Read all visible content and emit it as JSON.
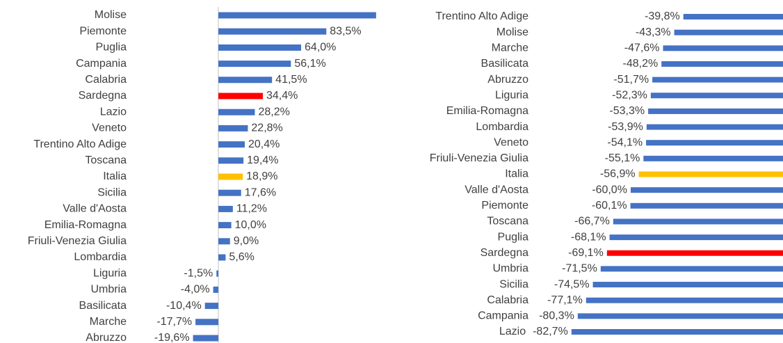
{
  "chart_data": [
    {
      "type": "barh",
      "categories": [
        "Molise",
        "Piemonte",
        "Puglia",
        "Campania",
        "Calabria",
        "Sardegna",
        "Lazio",
        "Veneto",
        "Trentino Alto Adige",
        "Toscana",
        "Italia",
        "Sicilia",
        "Valle d'Aosta",
        "Emilia-Romagna",
        "Friuli-Venezia Giulia",
        "Lombardia",
        "Liguria",
        "Umbria",
        "Basilicata",
        "Marche",
        "Abruzzo"
      ],
      "values": [
        122.0,
        83.5,
        64.0,
        56.1,
        41.5,
        34.4,
        28.2,
        22.8,
        20.4,
        19.4,
        18.9,
        17.6,
        11.2,
        10.0,
        9.0,
        5.6,
        -1.5,
        -4.0,
        -10.4,
        -17.7,
        -19.6
      ],
      "value_labels": [
        null,
        "83,5%",
        "64,0%",
        "56,1%",
        "41,5%",
        "34,4%",
        "28,2%",
        "22,8%",
        "20,4%",
        "19,4%",
        "18,9%",
        "17,6%",
        "11,2%",
        "10,0%",
        "9,0%",
        "5,6%",
        "-1,5%",
        "-4,0%",
        "-10,4%",
        "-17,7%",
        "-19,6%"
      ],
      "colors": [
        "#4472c4",
        "#4472c4",
        "#4472c4",
        "#4472c4",
        "#4472c4",
        "#ff0000",
        "#4472c4",
        "#4472c4",
        "#4472c4",
        "#4472c4",
        "#ffc000",
        "#4472c4",
        "#4472c4",
        "#4472c4",
        "#4472c4",
        "#4472c4",
        "#4472c4",
        "#4472c4",
        "#4472c4",
        "#4472c4",
        "#4472c4"
      ],
      "xlim": [
        -66.7,
        129.6
      ]
    },
    {
      "type": "barh",
      "categories": [
        "Trentino Alto Adige",
        "Molise",
        "Marche",
        "Basilicata",
        "Abruzzo",
        "Liguria",
        "Emilia-Romagna",
        "Lombardia",
        "Veneto",
        "Friuli-Venezia Giulia",
        "Italia",
        "Valle d'Aosta",
        "Piemonte",
        "Toscana",
        "Puglia",
        "Sardegna",
        "Umbria",
        "Sicilia",
        "Calabria",
        "Campania",
        "Lazio"
      ],
      "values": [
        -39.8,
        -43.3,
        -47.6,
        -48.2,
        -51.7,
        -52.3,
        -53.3,
        -53.9,
        -54.1,
        -55.1,
        -56.9,
        -60.0,
        -60.1,
        -66.7,
        -68.1,
        -69.1,
        -71.5,
        -74.5,
        -77.1,
        -80.3,
        -82.7
      ],
      "value_labels": [
        "-39,8%",
        "-43,3%",
        "-47,6%",
        "-48,2%",
        "-51,7%",
        "-52,3%",
        "-53,3%",
        "-53,9%",
        "-54,1%",
        "-55,1%",
        "-56,9%",
        "-60,0%",
        "-60,1%",
        "-66,7%",
        "-68,1%",
        "-69,1%",
        "-71,5%",
        "-74,5%",
        "-77,1%",
        "-80,3%",
        "-82,7%"
      ],
      "colors": [
        "#4472c4",
        "#4472c4",
        "#4472c4",
        "#4472c4",
        "#4472c4",
        "#4472c4",
        "#4472c4",
        "#4472c4",
        "#4472c4",
        "#4472c4",
        "#ffc000",
        "#4472c4",
        "#4472c4",
        "#4472c4",
        "#4472c4",
        "#ff0000",
        "#4472c4",
        "#4472c4",
        "#4472c4",
        "#4472c4",
        "#4472c4"
      ],
      "xlim": [
        -152.5,
        -1.6
      ]
    }
  ]
}
